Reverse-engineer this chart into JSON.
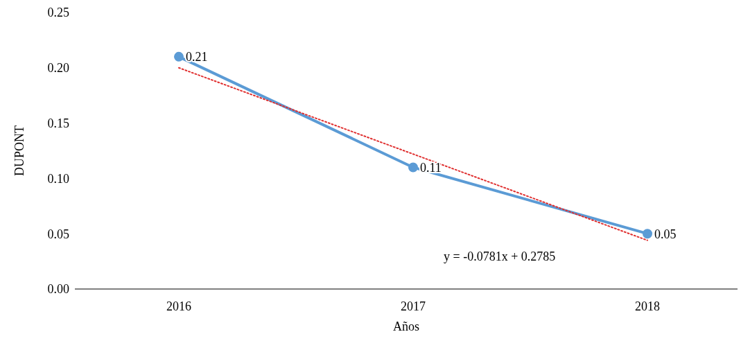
{
  "chart_data": {
    "type": "line",
    "xlabel": "Años",
    "ylabel": "DUPONT",
    "categories": [
      "2016",
      "2017",
      "2018"
    ],
    "series": [
      {
        "color": "#5b9bd5",
        "values": [
          0.21,
          0.11,
          0.05
        ],
        "value_labels": [
          "0.21",
          "0.11",
          "0.05"
        ],
        "marker": "circle",
        "line_style": "solid"
      },
      {
        "type": "line",
        "color": "#e03030",
        "values": [
          0.2,
          0.122,
          0.044
        ],
        "marker": "none",
        "line_style": "dotted"
      }
    ],
    "grid": false,
    "legend": false,
    "ylim": [
      0,
      0.25
    ],
    "yticks": [
      {
        "value": 0,
        "label": "0.00"
      },
      {
        "value": 0.05,
        "label": "0.05"
      },
      {
        "value": 0.1,
        "label": "0.10"
      },
      {
        "value": 0.15,
        "label": "0.15"
      },
      {
        "value": 0.2,
        "label": "0.20"
      },
      {
        "value": 0.25,
        "label": "0.25"
      }
    ],
    "annotations": [
      "y = -0.0781x + 0.2785"
    ]
  }
}
